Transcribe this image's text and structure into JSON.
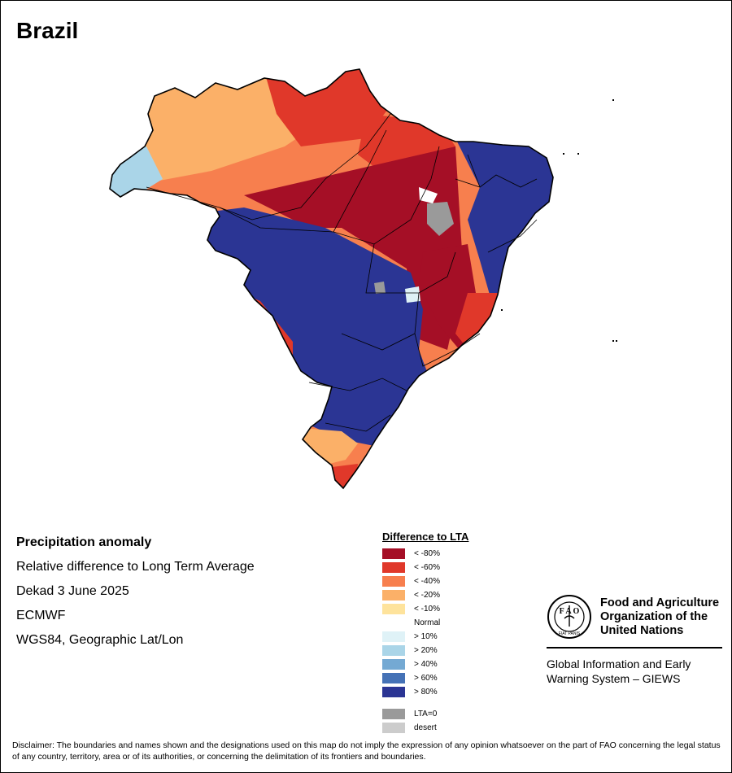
{
  "title": "Brazil",
  "info": {
    "heading": "Precipitation anomaly",
    "line1": "Relative difference to Long Term Average",
    "line2": "Dekad 3 June 2025",
    "line3": "ECMWF",
    "line4": "WGS84, Geographic Lat/Lon"
  },
  "legend": {
    "title": "Difference to LTA",
    "items": [
      {
        "label": "< -80%",
        "color": "#a50f26"
      },
      {
        "label": "< -60%",
        "color": "#e0382a"
      },
      {
        "label": "< -40%",
        "color": "#f77f4e"
      },
      {
        "label": "< -20%",
        "color": "#fbb068"
      },
      {
        "label": "< -10%",
        "color": "#fee39c"
      },
      {
        "label": "Normal",
        "color": "#ffffff"
      },
      {
        "label": "> 10%",
        "color": "#dff2f7"
      },
      {
        "label": "> 20%",
        "color": "#aad5e8"
      },
      {
        "label": "> 40%",
        "color": "#74a9d3"
      },
      {
        "label": "> 60%",
        "color": "#4572b6"
      },
      {
        "label": "> 80%",
        "color": "#2b3594"
      }
    ],
    "lta0": {
      "label": "LTA=0",
      "color": "#9a9a9a"
    },
    "desert": {
      "label": "desert",
      "color": "#cccccc"
    }
  },
  "fao": {
    "line1": "Food and Agriculture",
    "line2": "Organization of the",
    "line3": "United Nations",
    "logo_text": "FAO FIAT PANIS",
    "giews1": "Global Information and Early",
    "giews2": "Warning System – GIEWS"
  },
  "disclaimer": "Disclaimer: The boundaries and names shown and the designations used on this map do not imply the expression of any opinion whatsoever on the part of FAO concerning the legal status of any country, territory, area or of its authorities, or concerning the delimitation of its frontiers and boundaries."
}
